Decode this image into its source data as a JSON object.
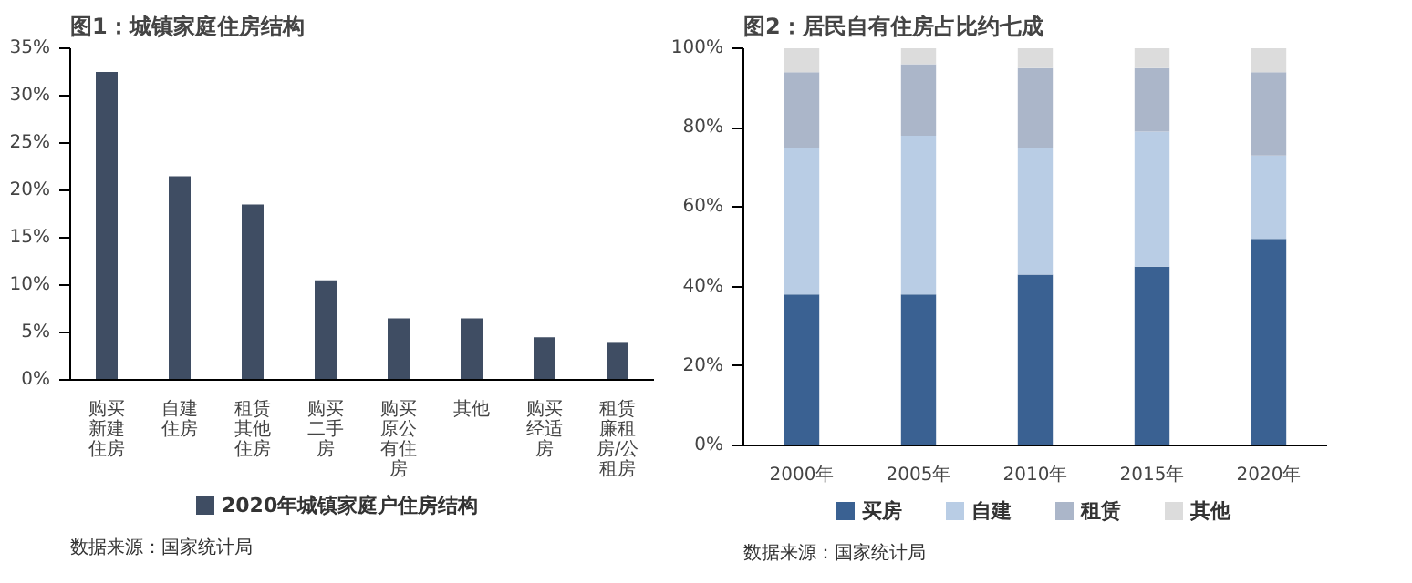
{
  "chart_data": [
    {
      "type": "bar",
      "title": "图1：城镇家庭住房结构",
      "categories": [
        "购买新建住房",
        "自建住房",
        "租赁其他住房",
        "购买二手房",
        "购买原公有住房",
        "其他",
        "购买经适房",
        "租赁廉租房/公租房"
      ],
      "series": [
        {
          "name": "2020年城镇家庭户住房结构",
          "color": "#3f4d63",
          "values": [
            32.5,
            21.5,
            18.5,
            10.5,
            6.5,
            6.5,
            4.5,
            4
          ]
        }
      ],
      "ylim": [
        0,
        35
      ],
      "yticks": [
        {
          "value": 0,
          "label": "0%"
        },
        {
          "value": 5,
          "label": "5%"
        },
        {
          "value": 10,
          "label": "10%"
        },
        {
          "value": 15,
          "label": "15%"
        },
        {
          "value": 20,
          "label": "20%"
        },
        {
          "value": 25,
          "label": "25%"
        },
        {
          "value": 30,
          "label": "30%"
        },
        {
          "value": 35,
          "label": "35%"
        }
      ],
      "legend": "bottom",
      "annotations": [
        "数据来源：国家统计局"
      ]
    },
    {
      "type": "bar",
      "title": "图2：居民自有住房占比约七成",
      "stacked": true,
      "categories": [
        "2000年",
        "2005年",
        "2010年",
        "2015年",
        "2020年"
      ],
      "series": [
        {
          "name": "买房",
          "color": "#3a6192",
          "values": [
            38,
            38,
            43,
            45,
            52
          ]
        },
        {
          "name": "自建",
          "color": "#b9cde5",
          "values": [
            37,
            40,
            32,
            34,
            21
          ]
        },
        {
          "name": "租赁",
          "color": "#abb6c9",
          "values": [
            19,
            18,
            20,
            16,
            21
          ]
        },
        {
          "name": "其他",
          "color": "#dcdcdc",
          "values": [
            6,
            4,
            5,
            5,
            6
          ]
        }
      ],
      "ylim": [
        0,
        100
      ],
      "yticks": [
        {
          "value": 0,
          "label": "0%"
        },
        {
          "value": 20,
          "label": "20%"
        },
        {
          "value": 40,
          "label": "40%"
        },
        {
          "value": 60,
          "label": "60%"
        },
        {
          "value": 80,
          "label": "80%"
        },
        {
          "value": 100,
          "label": "100%"
        }
      ],
      "legend": "bottom",
      "annotations": [
        "数据来源：国家统计局"
      ]
    }
  ]
}
